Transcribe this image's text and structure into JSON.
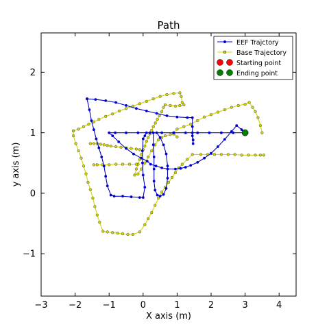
{
  "chart_data": {
    "type": "line",
    "title": "Path",
    "xlabel": "X axis (m)",
    "ylabel": "y axis (m)",
    "xlim": [
      -3,
      4.5
    ],
    "ylim": [
      -1.7,
      2.65
    ],
    "xticks": [
      -3,
      -2,
      -1,
      0,
      1,
      2,
      3,
      4
    ],
    "yticks": [
      -1,
      0,
      1,
      2
    ],
    "xtick_labels": [
      "−3",
      "−2",
      "−1",
      "0",
      "1",
      "2",
      "3",
      "4"
    ],
    "ytick_labels": [
      "−1",
      "0",
      "1",
      "2"
    ],
    "grid": false,
    "legend_position": "top-right",
    "series": [
      {
        "name": "EEF Trajctory",
        "color": "#0000cc",
        "marker": "circle",
        "points": [
          [
            3.0,
            1.0
          ],
          [
            2.65,
            1.0
          ],
          [
            2.3,
            1.0
          ],
          [
            1.95,
            1.0
          ],
          [
            1.6,
            1.0
          ],
          [
            1.25,
            1.0
          ],
          [
            0.9,
            1.0
          ],
          [
            0.55,
            1.0
          ],
          [
            0.2,
            1.0
          ],
          [
            -0.15,
            1.0
          ],
          [
            -0.5,
            1.0
          ],
          [
            -0.82,
            1.0
          ],
          [
            -1.0,
            1.0
          ],
          [
            -0.9,
            0.95
          ],
          [
            -0.72,
            0.85
          ],
          [
            -0.5,
            0.74
          ],
          [
            -0.28,
            0.65
          ],
          [
            -0.05,
            0.58
          ],
          [
            0.12,
            0.53
          ],
          [
            0.22,
            0.48
          ],
          [
            0.38,
            0.45
          ],
          [
            0.55,
            0.42
          ],
          [
            0.72,
            0.4
          ],
          [
            0.95,
            0.4
          ],
          [
            1.1,
            0.41
          ],
          [
            1.25,
            0.43
          ],
          [
            1.4,
            0.46
          ],
          [
            1.6,
            0.51
          ],
          [
            1.8,
            0.58
          ],
          [
            2.0,
            0.66
          ],
          [
            2.2,
            0.77
          ],
          [
            2.4,
            0.89
          ],
          [
            2.6,
            1.02
          ],
          [
            2.75,
            1.12
          ],
          [
            2.9,
            1.05
          ],
          [
            3.0,
            1.0
          ]
        ],
        "points_b": [
          [
            -1.65,
            1.56
          ],
          [
            -1.4,
            1.55
          ],
          [
            -1.1,
            1.53
          ],
          [
            -0.8,
            1.5
          ],
          [
            -0.5,
            1.45
          ],
          [
            -0.2,
            1.4
          ],
          [
            0.1,
            1.36
          ],
          [
            0.4,
            1.32
          ],
          [
            0.7,
            1.28
          ],
          [
            1.0,
            1.26
          ],
          [
            1.3,
            1.25
          ],
          [
            1.45,
            1.25
          ],
          [
            1.45,
            1.1
          ],
          [
            1.45,
            0.95
          ],
          [
            1.47,
            0.82
          ],
          [
            1.47,
            0.88
          ],
          [
            1.45,
            1.0
          ]
        ],
        "points_c": [
          [
            -1.65,
            1.56
          ],
          [
            -1.58,
            1.38
          ],
          [
            -1.52,
            1.2
          ],
          [
            -1.45,
            1.05
          ],
          [
            -1.38,
            0.9
          ],
          [
            -1.3,
            0.75
          ],
          [
            -1.22,
            0.6
          ],
          [
            -1.15,
            0.45
          ],
          [
            -1.1,
            0.28
          ],
          [
            -1.05,
            0.12
          ],
          [
            -0.95,
            -0.03
          ],
          [
            -0.85,
            -0.05
          ],
          [
            -0.6,
            -0.05
          ],
          [
            -0.35,
            -0.06
          ],
          [
            -0.1,
            -0.07
          ],
          [
            0.0,
            -0.07
          ],
          [
            0.05,
            0.1
          ],
          [
            0.0,
            0.3
          ],
          [
            -0.02,
            0.5
          ],
          [
            -0.02,
            0.7
          ],
          [
            0.0,
            0.9
          ],
          [
            0.05,
            0.95
          ],
          [
            0.1,
            1.0
          ]
        ],
        "points_d": [
          [
            0.3,
            1.0
          ],
          [
            0.3,
            0.8
          ],
          [
            0.32,
            0.6
          ],
          [
            0.32,
            0.4
          ],
          [
            0.32,
            0.2
          ],
          [
            0.35,
            0.05
          ],
          [
            0.42,
            -0.03
          ],
          [
            0.5,
            -0.05
          ],
          [
            0.6,
            -0.02
          ],
          [
            0.68,
            0.08
          ],
          [
            0.72,
            0.25
          ],
          [
            0.72,
            0.45
          ],
          [
            0.68,
            0.65
          ],
          [
            0.6,
            0.8
          ],
          [
            0.5,
            0.92
          ],
          [
            0.4,
            1.0
          ]
        ]
      },
      {
        "name": "Base Trajectory",
        "color": "#d4d400",
        "marker": "circle",
        "points": [
          [
            -2.05,
            1.03
          ],
          [
            -1.9,
            1.06
          ],
          [
            -1.75,
            1.1
          ],
          [
            -1.6,
            1.14
          ],
          [
            -1.45,
            1.18
          ],
          [
            -1.3,
            1.22
          ],
          [
            -1.1,
            1.27
          ],
          [
            -0.9,
            1.31
          ],
          [
            -0.7,
            1.36
          ],
          [
            -0.5,
            1.4
          ],
          [
            -0.3,
            1.44
          ],
          [
            -0.1,
            1.48
          ],
          [
            0.1,
            1.52
          ],
          [
            0.3,
            1.56
          ],
          [
            0.5,
            1.6
          ],
          [
            0.7,
            1.63
          ],
          [
            0.9,
            1.65
          ],
          [
            1.08,
            1.66
          ],
          [
            1.12,
            1.6
          ],
          [
            1.15,
            1.5
          ],
          [
            1.2,
            1.46
          ],
          [
            1.08,
            1.45
          ],
          [
            0.95,
            1.44
          ],
          [
            0.8,
            1.45
          ],
          [
            0.65,
            1.46
          ],
          [
            0.6,
            1.42
          ],
          [
            0.55,
            1.35
          ],
          [
            0.48,
            1.28
          ],
          [
            0.42,
            1.22
          ],
          [
            0.36,
            1.16
          ],
          [
            0.3,
            1.1
          ],
          [
            0.25,
            1.04
          ],
          [
            0.2,
            0.98
          ],
          [
            0.15,
            0.92
          ],
          [
            0.1,
            0.86
          ],
          [
            0.05,
            0.78
          ],
          [
            0.0,
            0.72
          ],
          [
            -0.05,
            0.64
          ],
          [
            -0.1,
            0.56
          ],
          [
            -0.15,
            0.48
          ],
          [
            -0.2,
            0.4
          ],
          [
            -0.25,
            0.3
          ],
          [
            -0.15,
            0.32
          ],
          [
            -0.05,
            0.4
          ],
          [
            0.05,
            0.5
          ],
          [
            0.15,
            0.6
          ],
          [
            0.25,
            0.7
          ],
          [
            0.35,
            0.8
          ],
          [
            0.45,
            0.88
          ],
          [
            0.55,
            0.92
          ],
          [
            0.65,
            0.95
          ],
          [
            0.8,
            0.97
          ],
          [
            0.9,
            0.98
          ],
          [
            1.0,
            0.93
          ],
          [
            0.9,
            1.0
          ],
          [
            1.0,
            1.06
          ],
          [
            1.2,
            1.1
          ],
          [
            1.4,
            1.14
          ],
          [
            1.6,
            1.2
          ],
          [
            1.8,
            1.26
          ],
          [
            2.0,
            1.3
          ],
          [
            2.2,
            1.34
          ],
          [
            2.4,
            1.38
          ],
          [
            2.6,
            1.42
          ],
          [
            2.8,
            1.45
          ],
          [
            3.0,
            1.47
          ],
          [
            3.12,
            1.5
          ],
          [
            3.22,
            1.42
          ],
          [
            3.3,
            1.35
          ],
          [
            3.38,
            1.25
          ],
          [
            3.45,
            1.12
          ],
          [
            3.5,
            1.0
          ]
        ],
        "points_b": [
          [
            -2.05,
            1.03
          ],
          [
            -2.05,
            0.95
          ],
          [
            -1.98,
            0.82
          ],
          [
            -1.9,
            0.7
          ],
          [
            -1.82,
            0.58
          ],
          [
            -1.75,
            0.45
          ],
          [
            -1.68,
            0.32
          ],
          [
            -1.62,
            0.18
          ],
          [
            -1.55,
            0.06
          ],
          [
            -1.48,
            -0.08
          ],
          [
            -1.42,
            -0.22
          ],
          [
            -1.35,
            -0.36
          ],
          [
            -1.28,
            -0.48
          ],
          [
            -1.18,
            -0.63
          ],
          [
            -1.05,
            -0.64
          ],
          [
            -0.9,
            -0.65
          ],
          [
            -0.75,
            -0.66
          ],
          [
            -0.6,
            -0.67
          ],
          [
            -0.45,
            -0.68
          ],
          [
            -0.3,
            -0.68
          ],
          [
            -0.1,
            -0.64
          ],
          [
            0.05,
            -0.52
          ],
          [
            0.15,
            -0.42
          ],
          [
            0.25,
            -0.32
          ],
          [
            0.35,
            -0.2
          ],
          [
            0.45,
            -0.08
          ],
          [
            0.55,
            0.02
          ],
          [
            0.65,
            0.1
          ],
          [
            0.75,
            0.18
          ],
          [
            0.85,
            0.26
          ],
          [
            0.95,
            0.34
          ],
          [
            1.05,
            0.42
          ],
          [
            1.15,
            0.48
          ],
          [
            1.3,
            0.56
          ],
          [
            1.45,
            0.64
          ],
          [
            1.7,
            0.64
          ],
          [
            1.9,
            0.64
          ],
          [
            2.1,
            0.64
          ],
          [
            2.3,
            0.64
          ],
          [
            2.5,
            0.64
          ],
          [
            2.7,
            0.64
          ],
          [
            2.9,
            0.63
          ],
          [
            3.1,
            0.63
          ],
          [
            3.3,
            0.63
          ],
          [
            3.45,
            0.63
          ],
          [
            3.55,
            0.63
          ]
        ],
        "points_c": [
          [
            -1.55,
            0.82
          ],
          [
            -1.45,
            0.82
          ],
          [
            -1.35,
            0.82
          ],
          [
            -1.25,
            0.81
          ],
          [
            -1.15,
            0.8
          ],
          [
            -1.05,
            0.79
          ],
          [
            -0.95,
            0.78
          ],
          [
            -0.8,
            0.77
          ],
          [
            -0.65,
            0.76
          ],
          [
            -0.5,
            0.75
          ],
          [
            -0.35,
            0.74
          ],
          [
            -0.2,
            0.73
          ],
          [
            -0.1,
            0.72
          ]
        ],
        "points_d": [
          [
            -1.45,
            0.47
          ],
          [
            -1.35,
            0.47
          ],
          [
            -1.2,
            0.47
          ],
          [
            -1.0,
            0.47
          ],
          [
            -0.8,
            0.48
          ],
          [
            -0.6,
            0.48
          ],
          [
            -0.4,
            0.48
          ],
          [
            -0.2,
            0.48
          ]
        ]
      }
    ],
    "markers": [
      {
        "name": "Starting point",
        "color": "#ff0000",
        "x": 3.0,
        "y": 1.0
      },
      {
        "name": "Ending point",
        "color": "#008000",
        "x": 3.0,
        "y": 1.0
      }
    ]
  }
}
